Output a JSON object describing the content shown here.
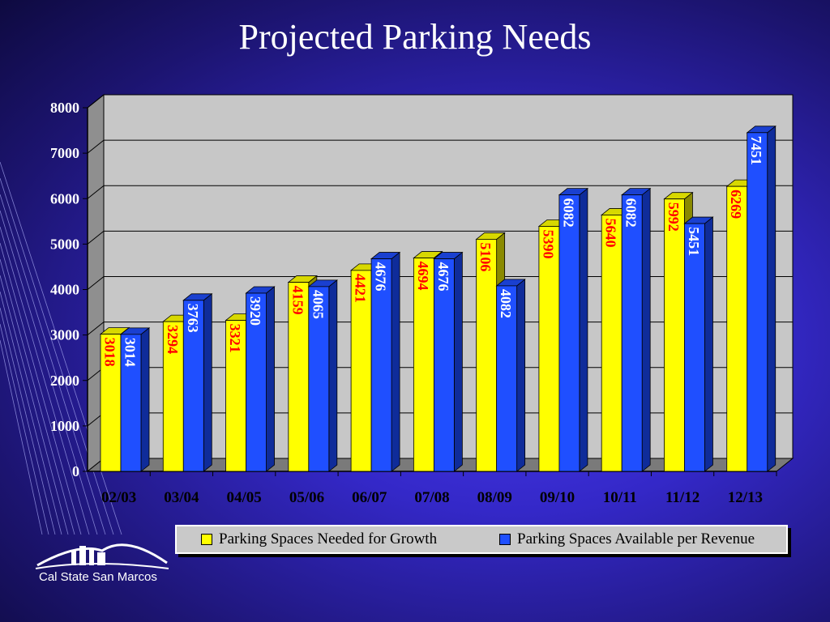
{
  "title": "Projected Parking Needs",
  "colors": {
    "needed": "#ffff00",
    "available": "#1f4fff",
    "needed_label": "#ff0000",
    "available_label": "#ffffff",
    "plot_wall": "#c7c7c7"
  },
  "logo": {
    "text": "Cal State San Marcos",
    "icon": "campus-skyline-logo"
  },
  "chart_data": {
    "type": "bar",
    "title": "Projected Parking Needs",
    "categories": [
      "02/03",
      "03/04",
      "04/05",
      "05/06",
      "06/07",
      "07/08",
      "08/09",
      "09/10",
      "10/11",
      "11/12",
      "12/13"
    ],
    "series": [
      {
        "name": "Parking Spaces Needed for Growth",
        "values": [
          3018,
          3294,
          3321,
          4159,
          4421,
          4694,
          5106,
          5390,
          5640,
          5992,
          6269
        ]
      },
      {
        "name": "Parking Spaces Available per Revenue",
        "values": [
          3014,
          3763,
          3920,
          4065,
          4676,
          4676,
          4082,
          6082,
          6082,
          5451,
          7451
        ]
      }
    ],
    "yticks": [
      "0",
      "1000",
      "2000",
      "3000",
      "4000",
      "5000",
      "6000",
      "7000",
      "8000"
    ],
    "ylim": [
      0,
      8000
    ],
    "grid": true,
    "legend_position": "bottom"
  }
}
